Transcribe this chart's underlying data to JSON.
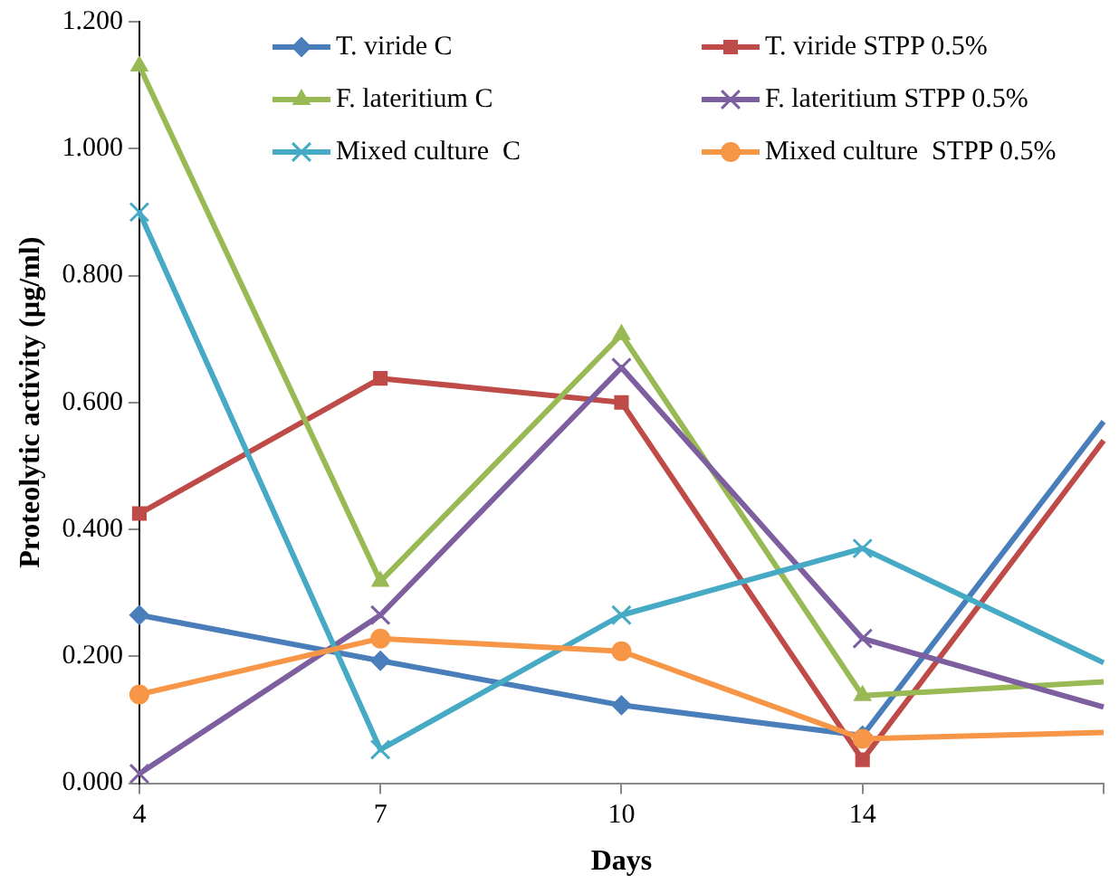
{
  "chart_data": {
    "type": "line",
    "xlabel": "Days",
    "ylabel": "Proteolytic activity (µg/ml)",
    "categories": [
      "4",
      "7",
      "10",
      "14",
      null
    ],
    "series": [
      {
        "name": "T. viride C",
        "color": "#4a7ebb",
        "marker": "diamond",
        "values": [
          0.265,
          0.193,
          0.123,
          0.075,
          0.57
        ]
      },
      {
        "name": "T. viride STPP 0.5%",
        "color": "#be4b48",
        "marker": "square",
        "values": [
          0.425,
          0.638,
          0.6,
          0.037,
          0.54
        ]
      },
      {
        "name": "F. lateritium C",
        "color": "#98b954",
        "marker": "triangle",
        "values": [
          1.13,
          0.318,
          0.707,
          0.138,
          0.16
        ]
      },
      {
        "name": "F. lateritium STPP 0.5%",
        "color": "#7d5fa0",
        "marker": "cross",
        "values": [
          0.015,
          0.265,
          0.655,
          0.228,
          0.12
        ]
      },
      {
        "name": "Mixed culture  C",
        "color": "#46aac5",
        "marker": "cross",
        "values": [
          0.9,
          0.053,
          0.265,
          0.37,
          0.19
        ]
      },
      {
        "name": "Mixed culture  STPP 0.5%",
        "color": "#f79646",
        "marker": "circle",
        "values": [
          0.14,
          0.228,
          0.208,
          0.07,
          0.08
        ]
      }
    ],
    "ylim": [
      0,
      1.2
    ],
    "yticks": [
      {
        "value": 0,
        "label": "0.000"
      },
      {
        "value": 0.2,
        "label": "0.200"
      },
      {
        "value": 0.4,
        "label": "0.400"
      },
      {
        "value": 0.6,
        "label": "0.600"
      },
      {
        "value": 0.8,
        "label": "0.800"
      },
      {
        "value": 1,
        "label": "1.000"
      },
      {
        "value": 1.2,
        "label": "1.200"
      }
    ],
    "grid": false,
    "legend": "top right",
    "line_style": "solid"
  }
}
